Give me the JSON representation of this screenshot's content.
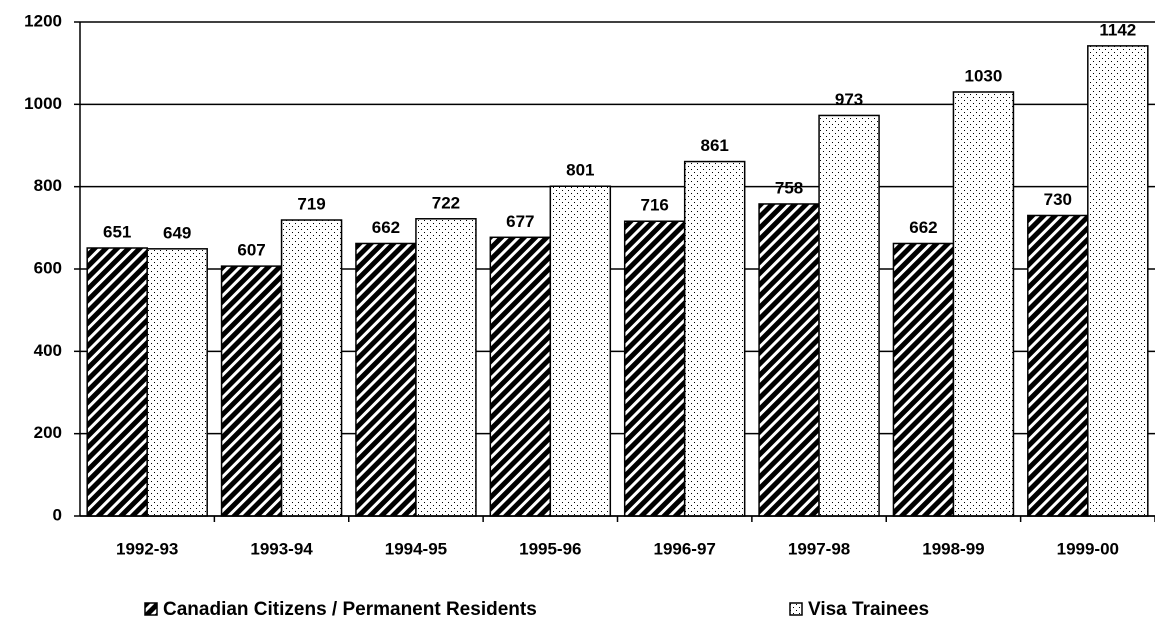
{
  "chart_data": {
    "type": "bar",
    "categories": [
      "1992-93",
      "1993-94",
      "1994-95",
      "1995-96",
      "1996-97",
      "1997-98",
      "1998-99",
      "1999-00"
    ],
    "series": [
      {
        "name": "Canadian Citizens / Permanent Residents",
        "color": "#000000",
        "values": [
          651,
          607,
          662,
          677,
          716,
          758,
          662,
          730
        ]
      },
      {
        "name": "Visa Trainees",
        "color": "#000000",
        "values": [
          649,
          719,
          722,
          801,
          861,
          973,
          1030,
          1142
        ]
      }
    ],
    "ylim": [
      0,
      1200
    ],
    "yticks": [
      0,
      200,
      400,
      600,
      800,
      1000,
      1200
    ],
    "grid": true,
    "legend": "bottom"
  }
}
